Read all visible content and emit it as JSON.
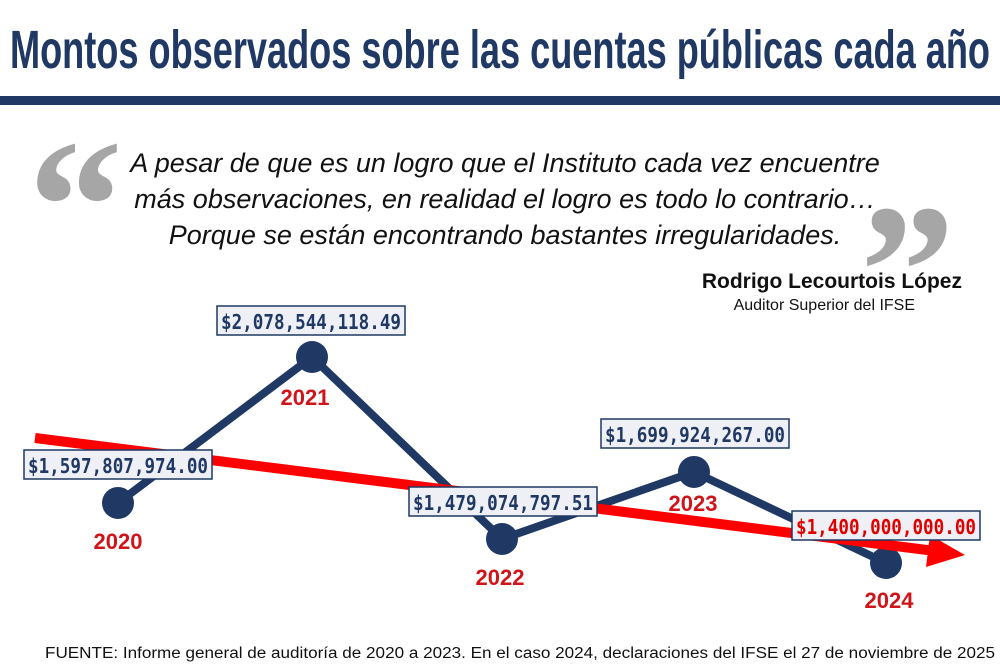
{
  "chart_data": {
    "type": "line",
    "title": "Montos observados sobre las cuentas públicas cada año",
    "categories": [
      "2020",
      "2021",
      "2022",
      "2023",
      "2024"
    ],
    "values": [
      1597807974.0,
      2078544118.49,
      1479074797.51,
      1699924267.0,
      1400000000.0
    ],
    "value_labels": [
      "$1,597,807,974.00",
      "$2,078,544,118.49",
      "$1,479,074,797.51",
      "$1,699,924,267.00",
      "$1,400,000,000.00"
    ],
    "color": "#1f3864"
  },
  "quote": {
    "lines": [
      "A pesar de que es un logro que el Instituto cada vez encuentre",
      "más observaciones, en realidad el logro es todo lo contrario…",
      "Porque se están encontrando bastantes irregularidades."
    ],
    "author": "Rodrigo Lecourtois López",
    "role": "Auditor Superior del IFSE"
  },
  "source": "FUENTE: Informe general de auditoría de 2020 a 2023. En el caso 2024, declaraciones del IFSE el 27 de noviembre de 2025"
}
